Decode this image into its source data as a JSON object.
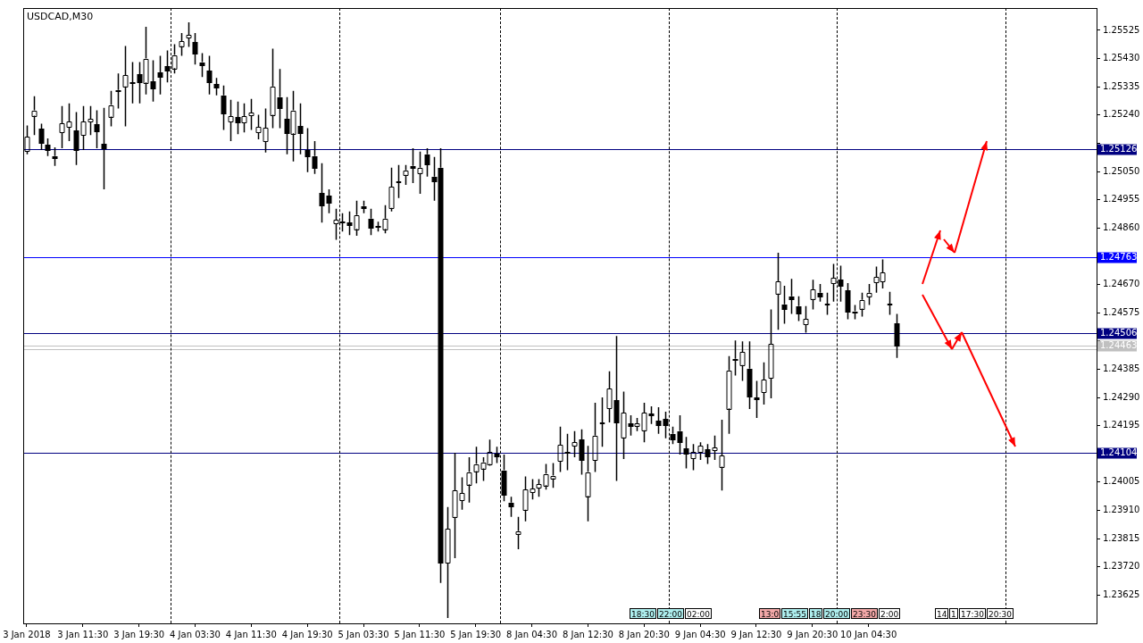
{
  "chart_data": {
    "type": "candlestick",
    "title": "USDCAD,M30",
    "color": "#000000",
    "categories": [
      "3 Jan 2018",
      null,
      null,
      null,
      null,
      null,
      null,
      null,
      "3 Jan 11:30",
      null,
      null,
      null,
      null,
      null,
      null,
      null,
      "3 Jan 19:30",
      null,
      null,
      null,
      null,
      null,
      null,
      null,
      "4 Jan 03:30",
      null,
      null,
      null,
      null,
      null,
      null,
      null,
      "4 Jan 11:30",
      null,
      null,
      null,
      null,
      null,
      null,
      null,
      "4 Jan 19:30",
      null,
      null,
      null,
      null,
      null,
      null,
      null,
      "5 Jan 03:30",
      null,
      null,
      null,
      null,
      null,
      null,
      null,
      "5 Jan 11:30",
      null,
      null,
      null,
      null,
      null,
      null,
      null,
      "5 Jan 19:30",
      null,
      null,
      null,
      null,
      null,
      null,
      null,
      "8 Jan 04:30",
      null,
      null,
      null,
      null,
      null,
      null,
      null,
      "8 Jan 12:30",
      null,
      null,
      null,
      null,
      null,
      null,
      null,
      "8 Jan 20:30",
      null,
      null,
      null,
      null,
      null,
      null,
      null,
      "9 Jan 04:30",
      null,
      null,
      null,
      null,
      null,
      null,
      null,
      "9 Jan 12:30",
      null,
      null,
      null,
      null,
      null,
      null,
      null,
      "9 Jan 20:30",
      null,
      null,
      null,
      null,
      null,
      null,
      null,
      "10 Jan 04:30",
      null,
      null,
      null,
      null,
      null,
      null,
      null,
      null,
      null,
      null,
      null,
      null,
      null,
      null,
      null,
      null,
      null,
      null,
      null,
      null,
      null,
      null,
      null,
      null,
      null,
      null,
      null,
      null,
      null,
      null,
      null,
      null
    ],
    "ohlc": [
      [
        1.25119,
        1.25205,
        1.25108,
        1.25167
      ],
      [
        1.25238,
        1.25303,
        1.25173,
        1.25256
      ],
      [
        1.25193,
        1.25211,
        1.25122,
        1.25146
      ],
      [
        1.2514,
        1.25161,
        1.25102,
        1.25122
      ],
      [
        1.25102,
        1.25131,
        1.25069,
        1.25096
      ],
      [
        1.25182,
        1.2527,
        1.25128,
        1.25211
      ],
      [
        1.25199,
        1.25279,
        1.25152,
        1.25217
      ],
      [
        1.25188,
        1.2525,
        1.25072,
        1.25122
      ],
      [
        1.25173,
        1.2527,
        1.25122,
        1.25217
      ],
      [
        1.25217,
        1.2527,
        1.25173,
        1.25226
      ],
      [
        1.25208,
        1.25256,
        1.25128,
        1.25185
      ],
      [
        1.25143,
        1.25264,
        1.2499,
        1.25128
      ],
      [
        1.25235,
        1.25321,
        1.25202,
        1.25274
      ],
      [
        1.25324,
        1.2538,
        1.25262,
        1.25321
      ],
      [
        1.25336,
        1.25472,
        1.25202,
        1.25374
      ],
      [
        1.2535,
        1.25418,
        1.25279,
        1.25347
      ],
      [
        1.25377,
        1.25418,
        1.25279,
        1.2535
      ],
      [
        1.2535,
        1.25537,
        1.25309,
        1.2543
      ],
      [
        1.25353,
        1.25424,
        1.25285,
        1.2533
      ],
      [
        1.25383,
        1.25439,
        1.25309,
        1.25368
      ],
      [
        1.25404,
        1.25457,
        1.2535,
        1.25389
      ],
      [
        1.25398,
        1.25478,
        1.2538,
        1.25442
      ],
      [
        1.25472,
        1.25516,
        1.25439,
        1.25489
      ],
      [
        1.25501,
        1.25552,
        1.25469,
        1.2551
      ],
      [
        1.25486,
        1.25516,
        1.2541,
        1.25448
      ],
      [
        1.25418,
        1.25448,
        1.25368,
        1.2541
      ],
      [
        1.25389,
        1.25439,
        1.25309,
        1.2535
      ],
      [
        1.25344,
        1.25365,
        1.25306,
        1.25333
      ],
      [
        1.25306,
        1.25339,
        1.2519,
        1.25247
      ],
      [
        1.25217,
        1.25291,
        1.25152,
        1.25235
      ],
      [
        1.25232,
        1.25285,
        1.25176,
        1.25214
      ],
      [
        1.25214,
        1.25279,
        1.25182,
        1.25235
      ],
      [
        1.25238,
        1.25294,
        1.2519,
        1.25247
      ],
      [
        1.25182,
        1.25241,
        1.25158,
        1.25199
      ],
      [
        1.25152,
        1.25262,
        1.25114,
        1.25196
      ],
      [
        1.25241,
        1.25463,
        1.25196,
        1.25336
      ],
      [
        1.253,
        1.25395,
        1.25196,
        1.25264
      ],
      [
        1.25226,
        1.253,
        1.25108,
        1.25179
      ],
      [
        1.25179,
        1.25321,
        1.25084,
        1.25256
      ],
      [
        1.25202,
        1.25279,
        1.25108,
        1.25179
      ],
      [
        1.25122,
        1.25196,
        1.25048,
        1.25102
      ],
      [
        1.25102,
        1.25152,
        1.25042,
        1.25063
      ],
      [
        1.24978,
        1.25078,
        1.24878,
        1.24937
      ],
      [
        1.24969,
        1.2499,
        1.2491,
        1.24946
      ],
      [
        1.24875,
        1.24925,
        1.2482,
        1.24887
      ],
      [
        1.24881,
        1.2491,
        1.24848,
        1.24878
      ],
      [
        1.24878,
        1.24916,
        1.24836,
        1.24869
      ],
      [
        1.24857,
        1.24952,
        1.24834,
        1.24904
      ],
      [
        1.24934,
        1.24952,
        1.2491,
        1.24928
      ],
      [
        1.24892,
        1.24925,
        1.24836,
        1.24863
      ],
      [
        1.24866,
        1.24881,
        1.24848,
        1.24863
      ],
      [
        1.24857,
        1.24937,
        1.24842,
        1.24892
      ],
      [
        1.24928,
        1.25063,
        1.24916,
        1.24999
      ],
      [
        1.25016,
        1.25072,
        1.24961,
        1.25016
      ],
      [
        1.25039,
        1.25072,
        1.25005,
        1.25054
      ],
      [
        1.25069,
        1.25128,
        1.25011,
        1.25063
      ],
      [
        1.25045,
        1.25117,
        1.24975,
        1.25063
      ],
      [
        1.25108,
        1.25128,
        1.25033,
        1.25075
      ],
      [
        1.25033,
        1.25099,
        1.24952,
        1.25019
      ],
      [
        1.25063,
        1.25128,
        1.23666,
        1.23734
      ],
      [
        1.23734,
        1.23921,
        1.23548,
        1.23847
      ],
      [
        1.23888,
        1.24104,
        1.23749,
        1.23977
      ],
      [
        1.23944,
        1.24021,
        1.23912,
        1.23968
      ],
      [
        1.23998,
        1.24089,
        1.23936,
        1.24039
      ],
      [
        1.24042,
        1.24124,
        1.24001,
        1.24066
      ],
      [
        1.24051,
        1.24089,
        1.24009,
        1.24072
      ],
      [
        1.24066,
        1.24148,
        1.2406,
        1.24107
      ],
      [
        1.24101,
        1.24124,
        1.24069,
        1.24092
      ],
      [
        1.24045,
        1.24098,
        1.23941,
        1.23965
      ],
      [
        1.23936,
        1.23956,
        1.23888,
        1.23924
      ],
      [
        1.23831,
        1.23888,
        1.23779,
        1.2384
      ],
      [
        1.23912,
        1.24024,
        1.23873,
        1.2398
      ],
      [
        1.23971,
        1.24015,
        1.23947,
        1.23983
      ],
      [
        1.23986,
        1.24015,
        1.23956,
        1.23998
      ],
      [
        1.23995,
        1.24066,
        1.2398,
        1.24033
      ],
      [
        1.24018,
        1.24069,
        1.23986,
        1.24027
      ],
      [
        1.24075,
        1.24192,
        1.24039,
        1.2413
      ],
      [
        1.24107,
        1.24168,
        1.24045,
        1.24104
      ],
      [
        1.24127,
        1.24177,
        1.24089,
        1.24139
      ],
      [
        1.24148,
        1.24183,
        1.2403,
        1.2408
      ],
      [
        1.23959,
        1.24127,
        1.23873,
        1.24039
      ],
      [
        1.2408,
        1.24272,
        1.24039,
        1.24162
      ],
      [
        1.24206,
        1.2429,
        1.24124,
        1.24206
      ],
      [
        1.24253,
        1.24378,
        1.24206,
        1.24319
      ],
      [
        1.24281,
        1.24497,
        1.24009,
        1.24206
      ],
      [
        1.24156,
        1.2431,
        1.24083,
        1.24239
      ],
      [
        1.24203,
        1.2423,
        1.24162,
        1.24195
      ],
      [
        1.24195,
        1.24221,
        1.24177,
        1.24203
      ],
      [
        1.2418,
        1.24272,
        1.24139,
        1.24239
      ],
      [
        1.24236,
        1.2426,
        1.24201,
        1.2423
      ],
      [
        1.24212,
        1.24257,
        1.24168,
        1.24198
      ],
      [
        1.24218,
        1.24242,
        1.24153,
        1.24198
      ],
      [
        1.24168,
        1.24192,
        1.24133,
        1.2415
      ],
      [
        1.24177,
        1.2423,
        1.24098,
        1.24142
      ],
      [
        1.24119,
        1.24157,
        1.24051,
        1.24101
      ],
      [
        1.24086,
        1.24133,
        1.24045,
        1.24107
      ],
      [
        1.24107,
        1.24139,
        1.2408,
        1.24127
      ],
      [
        1.24116,
        1.24133,
        1.24066,
        1.24092
      ],
      [
        1.24113,
        1.24162,
        1.2408,
        1.24121
      ],
      [
        1.24057,
        1.24215,
        1.23977,
        1.24095
      ],
      [
        1.24253,
        1.24429,
        1.24168,
        1.24381
      ],
      [
        1.2442,
        1.24482,
        1.24364,
        1.24417
      ],
      [
        1.24399,
        1.24479,
        1.24346,
        1.24443
      ],
      [
        1.24387,
        1.24479,
        1.24251,
        1.24293
      ],
      [
        1.2429,
        1.24346,
        1.24221,
        1.24284
      ],
      [
        1.24307,
        1.24408,
        1.24266,
        1.24349
      ],
      [
        1.24355,
        1.24586,
        1.24287,
        1.2447
      ],
      [
        1.24639,
        1.24777,
        1.24518,
        1.2468
      ],
      [
        1.24603,
        1.24666,
        1.24538,
        1.24589
      ],
      [
        1.2463,
        1.24689,
        1.24571,
        1.24621
      ],
      [
        1.24597,
        1.2463,
        1.24547,
        1.24574
      ],
      [
        1.24535,
        1.24597,
        1.24508,
        1.24553
      ],
      [
        1.24621,
        1.24686,
        1.24586,
        1.24654
      ],
      [
        1.24642,
        1.24672,
        1.24612,
        1.2463
      ],
      [
        1.24606,
        1.24642,
        1.24568,
        1.24606
      ],
      [
        1.24675,
        1.24739,
        1.24612,
        1.24692
      ],
      [
        1.24686,
        1.24733,
        1.24612,
        1.24666
      ],
      [
        1.24651,
        1.24675,
        1.24553,
        1.2458
      ],
      [
        1.2458,
        1.24601,
        1.24553,
        1.24577
      ],
      [
        1.24589,
        1.24642,
        1.24562,
        1.24618
      ],
      [
        1.2463,
        1.24672,
        1.24601,
        1.24642
      ],
      [
        1.24677,
        1.2473,
        1.24642,
        1.24695
      ],
      [
        1.2468,
        1.24754,
        1.24657,
        1.2471
      ],
      [
        1.24606,
        1.24645,
        1.24568,
        1.24606
      ],
      [
        1.24538,
        1.24571,
        1.24423,
        1.24463
      ],
      null,
      null,
      null,
      null,
      null,
      null,
      null,
      null,
      null,
      null,
      null,
      null,
      null,
      null,
      null,
      null,
      null,
      null,
      null,
      null,
      null,
      null,
      null,
      null,
      null,
      null,
      null,
      null
    ],
    "ylim": [
      1.2353,
      1.256
    ],
    "yticks": [
      1.25525,
      {
        "value": 1.2543,
        "label": "1.25430"
      },
      1.25335,
      {
        "value": 1.2524,
        "label": "1.25240"
      },
      {
        "value": 1.25145,
        "label": null
      },
      {
        "value": 1.2505,
        "label": "1.25050"
      },
      1.24955,
      {
        "value": 1.2486,
        "label": "1.24860"
      },
      {
        "value": 1.24765,
        "label": null
      },
      {
        "value": 1.2467,
        "label": "1.24670"
      },
      1.24575,
      {
        "value": 1.2448,
        "label": null
      },
      1.24385,
      {
        "value": 1.2429,
        "label": "1.24290"
      },
      1.24195,
      {
        "value": 1.241,
        "label": null
      },
      1.24005,
      {
        "value": 1.2391,
        "label": "1.23910"
      },
      1.23815,
      {
        "value": 1.2372,
        "label": "1.23720"
      },
      1.23625
    ],
    "ref_lines": [
      {
        "axis": "y",
        "value": 1.25126,
        "label": "1.25126",
        "color": "#000080"
      },
      {
        "axis": "y",
        "value": 1.24763,
        "label": "1.24763",
        "color": "#0000ff"
      },
      {
        "axis": "y",
        "value": 1.24506,
        "label": "1.24506",
        "color": "#000080"
      },
      {
        "axis": "y",
        "value": 1.24104,
        "label": "1.24104",
        "color": "#000080"
      },
      {
        "axis": "y",
        "value": 1.24463,
        "label": "1.24463",
        "color": "#c0c0c0"
      },
      {
        "axis": "y",
        "value": 1.24451,
        "color": "#c0c0c0"
      }
    ],
    "annotations": [
      "18:30",
      "22:00",
      "02:00",
      "13:0",
      "15:55",
      "18",
      "20:00",
      "23:30",
      "2:00",
      "14",
      "1",
      "17:30",
      "20:30"
    ]
  }
}
